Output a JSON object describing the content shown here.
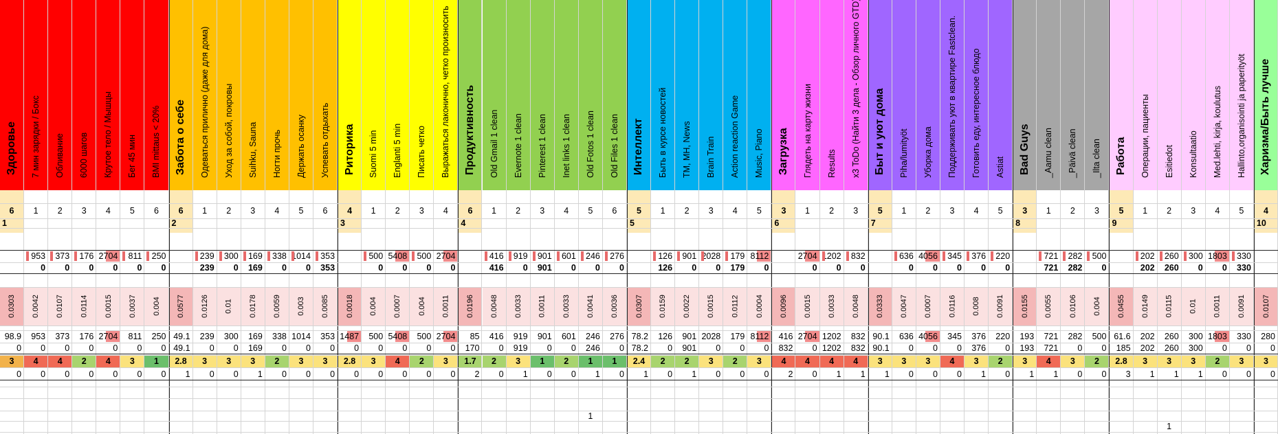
{
  "sheet": {
    "columns": [
      {
        "h": "Здоровье",
        "cat": true,
        "bg": "#ff0000",
        "c": "#e8c8c8",
        "r1": "6",
        "r2": "1",
        "r3": "",
        "r4": "",
        "r5": "0.0303",
        "r6": "98.9",
        "r7": "0",
        "r8": "3",
        "r8c": "#f2b24a",
        "r9": "0",
        "r10": "",
        "r11": ""
      },
      {
        "h": "7 мин зарядки / Бокс",
        "bg": "#ff0000",
        "r1": "1",
        "r3": "953",
        "r4": "0",
        "r5": "0.0042",
        "r6": "953",
        "r7": "0",
        "r8": "4",
        "r8c": "#f06a55",
        "r9": "0"
      },
      {
        "h": "Обливание",
        "bg": "#ff0000",
        "r1": "2",
        "r3": "373",
        "r4": "0",
        "r5": "0.0107",
        "r6": "373",
        "r7": "0",
        "r8": "4",
        "r8c": "#f06a55",
        "r9": "0"
      },
      {
        "h": "6000 шагов",
        "bg": "#ff0000",
        "r1": "3",
        "r3": "176",
        "r4": "0",
        "r5": "0.0114",
        "r6": "176",
        "r7": "0",
        "r8": "2",
        "r8c": "#a8d46e",
        "r9": "0"
      },
      {
        "h": "Крутое тело / Мышцы",
        "bg": "#ff0000",
        "r1": "4",
        "r3": "2704",
        "r4": "0",
        "r5": "0.0015",
        "r6": "2704",
        "r7": "0",
        "r8": "4",
        "r8c": "#f06a55",
        "r9": "0",
        "hot3": true,
        "hot6": true
      },
      {
        "h": "Бег 45 мин",
        "bg": "#ff0000",
        "r1": "5",
        "r3": "811",
        "r4": "0",
        "r5": "0.0037",
        "r6": "811",
        "r7": "0",
        "r8": "3",
        "r8c": "#fbe27c",
        "r9": "0"
      },
      {
        "h": "BMI mittaus < 20%",
        "bg": "#ff0000",
        "r1": "6",
        "r3": "250",
        "r4": "0",
        "r5": "0.004",
        "r6": "250",
        "r7": "0",
        "r8": "1",
        "r8c": "#6bbf6b",
        "r9": "0"
      },
      {
        "h": "Забота о себе",
        "cat": true,
        "bg": "#ffc000",
        "major": true,
        "r1": "6",
        "r2": "2",
        "r5": "0.0577",
        "r6": "49.1",
        "r7": "49.1",
        "r8": "2.8",
        "r8c": "#fbe27c",
        "r9": "1"
      },
      {
        "h": "Одеваться прилично (даже для дома)",
        "bg": "#ffc000",
        "r1": "1",
        "r3": "239",
        "r4": "239",
        "r5": "0.0126",
        "r6": "239",
        "r7": "0",
        "r8": "3",
        "r8c": "#fbe27c",
        "r9": "0"
      },
      {
        "h": "Уход за собой, покровы",
        "bg": "#ffc000",
        "r1": "2",
        "r3": "300",
        "r4": "0",
        "r5": "0.01",
        "r6": "300",
        "r7": "0",
        "r8": "3",
        "r8c": "#fbe27c",
        "r9": "0"
      },
      {
        "h": "Suihku, Sauna",
        "bg": "#ffc000",
        "r1": "3",
        "r3": "169",
        "r4": "169",
        "r5": "0.0178",
        "r6": "169",
        "r7": "169",
        "r8": "3",
        "r8c": "#fbe27c",
        "r9": "1"
      },
      {
        "h": "Ногти прочь",
        "bg": "#ffc000",
        "r1": "4",
        "r3": "338",
        "r4": "0",
        "r5": "0.0059",
        "r6": "338",
        "r7": "0",
        "r8": "2",
        "r8c": "#a8d46e",
        "r9": "0"
      },
      {
        "h": "Держать осанку",
        "bg": "#ffc000",
        "r1": "5",
        "r3": "1014",
        "r4": "0",
        "r5": "0.003",
        "r6": "1014",
        "r7": "0",
        "r8": "3",
        "r8c": "#fbe27c",
        "r9": "0"
      },
      {
        "h": "Успевать отдыхать",
        "bg": "#ffc000",
        "r1": "6",
        "r3": "353",
        "r4": "353",
        "r5": "0.0085",
        "r6": "353",
        "r7": "0",
        "r8": "3",
        "r8c": "#fbe27c",
        "r9": "0"
      },
      {
        "h": "Риторика",
        "cat": true,
        "bg": "#ffff00",
        "major": true,
        "r1": "4",
        "r2": "3",
        "r5": "0.0018",
        "r6": "1487",
        "r7": "0",
        "r8": "2.8",
        "r8c": "#fbe27c",
        "r9": "0",
        "hot6": true
      },
      {
        "h": "Suomi 5 min",
        "bg": "#ffff00",
        "r1": "1",
        "r3": "500",
        "r4": "0",
        "r5": "0.004",
        "r6": "500",
        "r7": "0",
        "r8": "3",
        "r8c": "#fbe27c",
        "r9": "0"
      },
      {
        "h": "Englanti 5 min",
        "bg": "#ffff00",
        "r1": "2",
        "r3": "5408",
        "r4": "0",
        "r5": "0.0007",
        "r6": "5408",
        "r7": "0",
        "r8": "4",
        "r8c": "#f06a55",
        "r9": "0",
        "hot3": true,
        "hot6": true
      },
      {
        "h": "Писать четко",
        "bg": "#ffff00",
        "r1": "3",
        "r3": "500",
        "r4": "0",
        "r5": "0.004",
        "r6": "500",
        "r7": "0",
        "r8": "2",
        "r8c": "#a8d46e",
        "r9": "0"
      },
      {
        "h": "Выражаться лаконично, четко произносить",
        "bg": "#ffff00",
        "r1": "4",
        "r3": "2704",
        "r4": "0",
        "r5": "0.0011",
        "r6": "2704",
        "r7": "0",
        "r8": "3",
        "r8c": "#fbe27c",
        "r9": "0",
        "hot3": true,
        "hot6": true
      },
      {
        "h": "Продуктивность",
        "cat": true,
        "bg": "#92d050",
        "major": true,
        "r1": "6",
        "r2": "4",
        "r5": "0.0196",
        "r6": "85",
        "r7": "170",
        "r8": "1.7",
        "r8c": "#a8d46e",
        "r9": "2"
      },
      {
        "h": "Old Gmail 1 clean",
        "bg": "#92d050",
        "r1": "1",
        "r3": "416",
        "r4": "416",
        "r5": "0.0048",
        "r6": "416",
        "r7": "0",
        "r8": "2",
        "r8c": "#a8d46e",
        "r9": "0"
      },
      {
        "h": "Evernote 1 clean",
        "bg": "#92d050",
        "r1": "2",
        "r3": "919",
        "r4": "0",
        "r5": "0.0033",
        "r6": "919",
        "r7": "919",
        "r8": "3",
        "r8c": "#fbe27c",
        "r9": "1"
      },
      {
        "h": "Pinterest 1 clean",
        "bg": "#92d050",
        "r1": "3",
        "r3": "901",
        "r4": "901",
        "r5": "0.0011",
        "r6": "901",
        "r7": "0",
        "r8": "1",
        "r8c": "#6bbf6b",
        "r9": "0"
      },
      {
        "h": "Inet links 1 clean",
        "bg": "#92d050",
        "r1": "4",
        "r3": "601",
        "r4": "0",
        "r5": "0.0033",
        "r6": "601",
        "r7": "0",
        "r8": "2",
        "r8c": "#a8d46e",
        "r9": "0"
      },
      {
        "h": "Old Fotos 1 clean",
        "bg": "#92d050",
        "r1": "5",
        "r3": "246",
        "r4": "0",
        "r5": "0.0041",
        "r6": "246",
        "r7": "246",
        "r8": "1",
        "r8c": "#6bbf6b",
        "r9": "1",
        "r11": "1"
      },
      {
        "h": "Old Files 1 clean",
        "bg": "#92d050",
        "r1": "6",
        "r3": "276",
        "r4": "0",
        "r5": "0.0036",
        "r6": "276",
        "r7": "0",
        "r8": "1",
        "r8c": "#6bbf6b",
        "r9": "0"
      },
      {
        "h": "Интеллект",
        "cat": true,
        "bg": "#00b0f0",
        "major": true,
        "r1": "5",
        "r2": "5",
        "r5": "0.0307",
        "r6": "78.2",
        "r7": "78.2",
        "r8": "2.4",
        "r8c": "#fbe27c",
        "r9": "1"
      },
      {
        "h": "Быть в курсе новостей",
        "bg": "#00b0f0",
        "r1": "1",
        "r3": "126",
        "r4": "126",
        "r5": "0.0159",
        "r6": "126",
        "r7": "0",
        "r8": "2",
        "r8c": "#a8d46e",
        "r9": "0"
      },
      {
        "h": "ТМ, МН, News",
        "bg": "#00b0f0",
        "r1": "2",
        "r3": "901",
        "r4": "0",
        "r5": "0.0022",
        "r6": "901",
        "r7": "901",
        "r8": "2",
        "r8c": "#a8d46e",
        "r9": "1"
      },
      {
        "h": "Brain Train",
        "bg": "#00b0f0",
        "r1": "3",
        "r3": "2028",
        "r4": "0",
        "r5": "0.0015",
        "r6": "2028",
        "r7": "0",
        "r8": "3",
        "r8c": "#fbe27c",
        "r9": "0"
      },
      {
        "h": "Action reaction Game",
        "bg": "#00b0f0",
        "r1": "4",
        "r3": "179",
        "r4": "179",
        "r5": "0.0112",
        "r6": "179",
        "r7": "0",
        "r8": "2",
        "r8c": "#a8d46e",
        "r9": "0"
      },
      {
        "h": "Music, Piano",
        "bg": "#00b0f0",
        "r1": "5",
        "r3": "8112",
        "r4": "0",
        "r5": "0.0004",
        "r6": "8112",
        "r7": "0",
        "r8": "3",
        "r8c": "#fbe27c",
        "r9": "0",
        "hot3": true,
        "hot6": true
      },
      {
        "h": "Загрузка",
        "cat": true,
        "bg": "#ff66ff",
        "major": true,
        "r1": "3",
        "r2": "6",
        "r5": "0.0096",
        "r6": "416",
        "r7": "832",
        "r8": "4",
        "r8c": "#f06a55",
        "r9": "2"
      },
      {
        "h": "Глядеть на карту жизни",
        "bg": "#ff66ff",
        "r1": "1",
        "r3": "2704",
        "r4": "0",
        "r5": "0.0015",
        "r6": "2704",
        "r7": "0",
        "r8": "4",
        "r8c": "#f06a55",
        "r9": "0",
        "hot3": true,
        "hot6": true
      },
      {
        "h": "Results",
        "bg": "#ff66ff",
        "r1": "2",
        "r3": "1202",
        "r4": "0",
        "r5": "0.0033",
        "r6": "1202",
        "r7": "1202",
        "r8": "4",
        "r8c": "#f06a55",
        "r9": "1"
      },
      {
        "h": "x3 ToDo (Найти 3 дела - Обзор личного GTD)",
        "bg": "#ff66ff",
        "r1": "3",
        "r3": "832",
        "r4": "0",
        "r5": "0.0048",
        "r6": "832",
        "r7": "832",
        "r8": "4",
        "r8c": "#f06a55",
        "r9": "1"
      },
      {
        "h": "Быт и уют дома",
        "cat": true,
        "bg": "#a066ff",
        "major": true,
        "r1": "5",
        "r2": "7",
        "r5": "0.0333",
        "r6": "90.1",
        "r7": "90.1",
        "r8": "3",
        "r8c": "#fbe27c",
        "r9": "1"
      },
      {
        "h": "Piha/lumityöt",
        "bg": "#a066ff",
        "r1": "1",
        "r3": "636",
        "r4": "0",
        "r5": "0.0047",
        "r6": "636",
        "r7": "0",
        "r8": "3",
        "r8c": "#fbe27c",
        "r9": "0"
      },
      {
        "h": "Уборка дома",
        "bg": "#a066ff",
        "r1": "2",
        "r3": "4056",
        "r4": "0",
        "r5": "0.0007",
        "r6": "4056",
        "r7": "0",
        "r8": "3",
        "r8c": "#fbe27c",
        "r9": "0",
        "hot3": true,
        "hot6": true
      },
      {
        "h": "Поддерживать уют в квартире Fastclean.",
        "bg": "#a066ff",
        "r1": "3",
        "r3": "345",
        "r4": "0",
        "r5": "0.0116",
        "r6": "345",
        "r7": "0",
        "r8": "4",
        "r8c": "#f06a55",
        "r9": "0"
      },
      {
        "h": "Готовить еду, интересное блюдо",
        "bg": "#a066ff",
        "r1": "4",
        "r3": "376",
        "r4": "0",
        "r5": "0.008",
        "r6": "376",
        "r7": "376",
        "r8": "3",
        "r8c": "#fbe27c",
        "r9": "1"
      },
      {
        "h": "Astiat",
        "bg": "#a066ff",
        "r1": "5",
        "r3": "220",
        "r4": "0",
        "r5": "0.0091",
        "r6": "220",
        "r7": "0",
        "r8": "2",
        "r8c": "#a8d46e",
        "r9": "0"
      },
      {
        "h": "Bad Guys",
        "cat": true,
        "bg": "#a6a6a6",
        "major": true,
        "r1": "3",
        "r2": "8",
        "r5": "0.0155",
        "r6": "193",
        "r7": "193",
        "r8": "3",
        "r8c": "#fbe27c",
        "r9": "1"
      },
      {
        "h": "_Aamu clean",
        "bg": "#a6a6a6",
        "r1": "1",
        "r3": "721",
        "r4": "721",
        "r5": "0.0055",
        "r6": "721",
        "r7": "721",
        "r8": "4",
        "r8c": "#f06a55",
        "r9": "1"
      },
      {
        "h": "_Päivä clean",
        "bg": "#a6a6a6",
        "r1": "2",
        "r3": "282",
        "r4": "282",
        "r5": "0.0106",
        "r6": "282",
        "r7": "0",
        "r8": "3",
        "r8c": "#fbe27c",
        "r9": "0"
      },
      {
        "h": "_Ilta clean",
        "bg": "#a6a6a6",
        "r1": "3",
        "r3": "500",
        "r4": "0",
        "r5": "0.004",
        "r6": "500",
        "r7": "0",
        "r8": "2",
        "r8c": "#a8d46e",
        "r9": "0"
      },
      {
        "h": "Работа",
        "cat": true,
        "bg": "#ffccff",
        "major": true,
        "r1": "5",
        "r2": "9",
        "r5": "0.0455",
        "r6": "61.6",
        "r7": "185",
        "r8": "2.8",
        "r8c": "#fbe27c",
        "r9": "3"
      },
      {
        "h": "Операции, пациенты",
        "bg": "#ffccff",
        "r1": "1",
        "r3": "202",
        "r4": "202",
        "r5": "0.0149",
        "r6": "202",
        "r7": "202",
        "r8": "3",
        "r8c": "#fbe27c",
        "r9": "1"
      },
      {
        "h": "Esitiedot",
        "bg": "#ffccff",
        "r1": "2",
        "r3": "260",
        "r4": "260",
        "r5": "0.0115",
        "r6": "260",
        "r7": "260",
        "r8": "3",
        "r8c": "#fbe27c",
        "r9": "1",
        "r12": "1"
      },
      {
        "h": "Konsultaatio",
        "bg": "#ffccff",
        "r1": "3",
        "r3": "300",
        "r4": "0",
        "r5": "0.01",
        "r6": "300",
        "r7": "300",
        "r8": "3",
        "r8c": "#fbe27c",
        "r9": "1"
      },
      {
        "h": "Med.lehti, kirja, koulutus",
        "bg": "#ffccff",
        "r1": "4",
        "r3": "1803",
        "r4": "0",
        "r5": "0.0011",
        "r6": "1803",
        "r7": "0",
        "r8": "2",
        "r8c": "#a8d46e",
        "r9": "0",
        "hot3": true,
        "hot6": true
      },
      {
        "h": "Hallinto,organisointi ja paperityöt",
        "bg": "#ffccff",
        "r1": "5",
        "r3": "330",
        "r4": "330",
        "r5": "0.0091",
        "r6": "330",
        "r7": "0",
        "r8": "3",
        "r8c": "#fbe27c",
        "r9": "0"
      },
      {
        "h": "Харизма/Быть лучше",
        "cat": true,
        "bg": "#99ff99",
        "major": true,
        "r1": "4",
        "r2": "10",
        "r5": "0.0107",
        "r6": "280",
        "r7": "0",
        "r8": "3",
        "r8c": "#fbe27c",
        "r9": "0"
      }
    ]
  }
}
